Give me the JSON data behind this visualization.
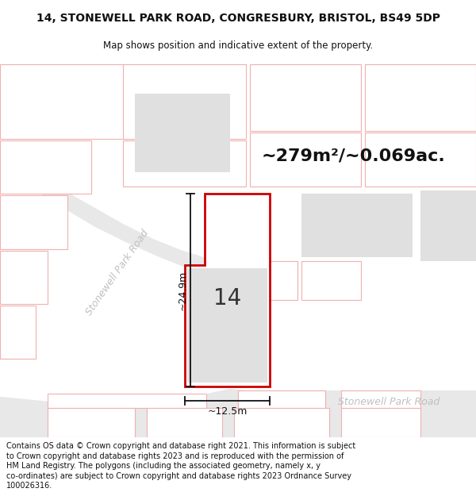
{
  "title_line1": "14, STONEWELL PARK ROAD, CONGRESBURY, BRISTOL, BS49 5DP",
  "title_line2": "Map shows position and indicative extent of the property.",
  "area_text": "~279m²/~0.069ac.",
  "dim_height": "~24.9m",
  "dim_width": "~12.5m",
  "label_14": "14",
  "road_label_diag": "Stonewell Park Road",
  "road_label_horiz": "Stonewell Park Road",
  "footer_text": "Contains OS data © Crown copyright and database right 2021. This information is subject to Crown copyright and database rights 2023 and is reproduced with the permission of HM Land Registry. The polygons (including the associated geometry, namely x, y co-ordinates) are subject to Crown copyright and database rights 2023 Ordnance Survey 100026316.",
  "bg_color": "#ffffff",
  "map_bg_color": "#ffffff",
  "plot_outline_color": "#f0b0b0",
  "property_outline_color": "#cc0000",
  "property_fill_color": "#ffffff",
  "building_fill_color": "#e0e0e0",
  "road_fill_color": "#e8e8e8",
  "road_label_color": "#c0c0c0",
  "title_fontsize": 10,
  "subtitle_fontsize": 8.5,
  "area_fontsize": 16,
  "label_fontsize": 20,
  "footer_fontsize": 7.0
}
